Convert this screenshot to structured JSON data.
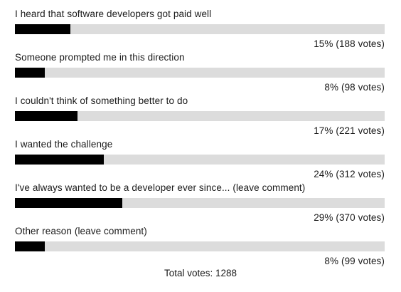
{
  "poll": {
    "options": [
      {
        "label": "I heard that software developers got paid well",
        "result": "15% (188 votes)",
        "fraction": 0.15
      },
      {
        "label": "Someone prompted me in this direction",
        "result": "8% (98 votes)",
        "fraction": 0.08
      },
      {
        "label": "I couldn't think of something better to do",
        "result": "17% (221 votes)",
        "fraction": 0.17
      },
      {
        "label": "I wanted the challenge",
        "result": "24% (312 votes)",
        "fraction": 0.24
      },
      {
        "label": "I've always wanted to be a developer ever since... (leave comment)",
        "result": "29% (370 votes)",
        "fraction": 0.29
      },
      {
        "label": "Other reason (leave comment)",
        "result": "8% (99 votes)",
        "fraction": 0.08
      }
    ],
    "total_label": "Total votes: 1288",
    "colors": {
      "bar_fill": "#000000",
      "bar_track": "#dcdcdc",
      "text": "#1a1a1a"
    }
  }
}
